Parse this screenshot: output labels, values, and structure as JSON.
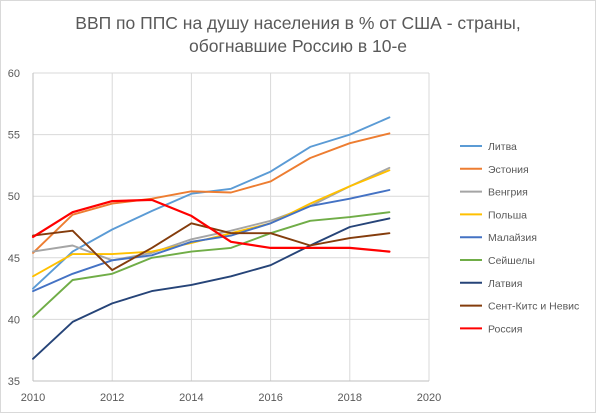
{
  "chart_data": {
    "type": "line",
    "title_lines": [
      "ВВП по ППС на душу населения в % от США - страны,",
      "обогнавшие Россию в 10-е"
    ],
    "xlim": [
      2010,
      2020
    ],
    "ylim": [
      35,
      60
    ],
    "x_ticks": [
      "2010",
      "2012",
      "2014",
      "2016",
      "2018",
      "2020"
    ],
    "y_ticks": [
      "35",
      "40",
      "45",
      "50",
      "55",
      "60"
    ],
    "x": [
      2010,
      2011,
      2012,
      2013,
      2014,
      2015,
      2016,
      2017,
      2018,
      2019
    ],
    "grid": true,
    "legend_position": "right",
    "series": [
      {
        "name": "Литва",
        "color": "#5b9bd5",
        "values": [
          42.5,
          45.5,
          47.3,
          48.8,
          50.2,
          50.6,
          52.0,
          54.0,
          55.0,
          56.4
        ]
      },
      {
        "name": "Эстония",
        "color": "#ed7d31",
        "values": [
          45.4,
          48.5,
          49.4,
          49.8,
          50.4,
          50.3,
          51.2,
          53.1,
          54.3,
          55.1
        ]
      },
      {
        "name": "Венгрия",
        "color": "#a5a5a5",
        "values": [
          45.5,
          46.0,
          44.8,
          45.4,
          46.5,
          47.2,
          48.0,
          49.2,
          50.8,
          52.3
        ]
      },
      {
        "name": "Польша",
        "color": "#ffc000",
        "values": [
          43.5,
          45.3,
          45.3,
          45.5,
          46.2,
          47.0,
          47.8,
          49.4,
          50.8,
          52.1
        ]
      },
      {
        "name": "Малайзия",
        "color": "#4472c4",
        "values": [
          42.3,
          43.7,
          44.8,
          45.2,
          46.3,
          46.8,
          47.8,
          49.2,
          49.8,
          50.5
        ]
      },
      {
        "name": "Сейшелы",
        "color": "#70ad47",
        "values": [
          40.2,
          43.2,
          43.7,
          45.0,
          45.5,
          45.8,
          47.0,
          48.0,
          48.3,
          48.7
        ]
      },
      {
        "name": "Латвия",
        "color": "#264478",
        "values": [
          36.8,
          39.8,
          41.3,
          42.3,
          42.8,
          43.5,
          44.4,
          46.0,
          47.5,
          48.2
        ]
      },
      {
        "name": "Сент-Китс и Невис",
        "color": "#843c0c",
        "values": [
          46.8,
          47.2,
          44.0,
          45.8,
          47.8,
          47.0,
          47.0,
          46.0,
          46.6,
          47.0
        ]
      },
      {
        "name": "Россия",
        "color": "#ff0000",
        "values": [
          46.7,
          48.7,
          49.6,
          49.7,
          48.4,
          46.3,
          45.8,
          45.8,
          45.8,
          45.5
        ]
      }
    ]
  }
}
